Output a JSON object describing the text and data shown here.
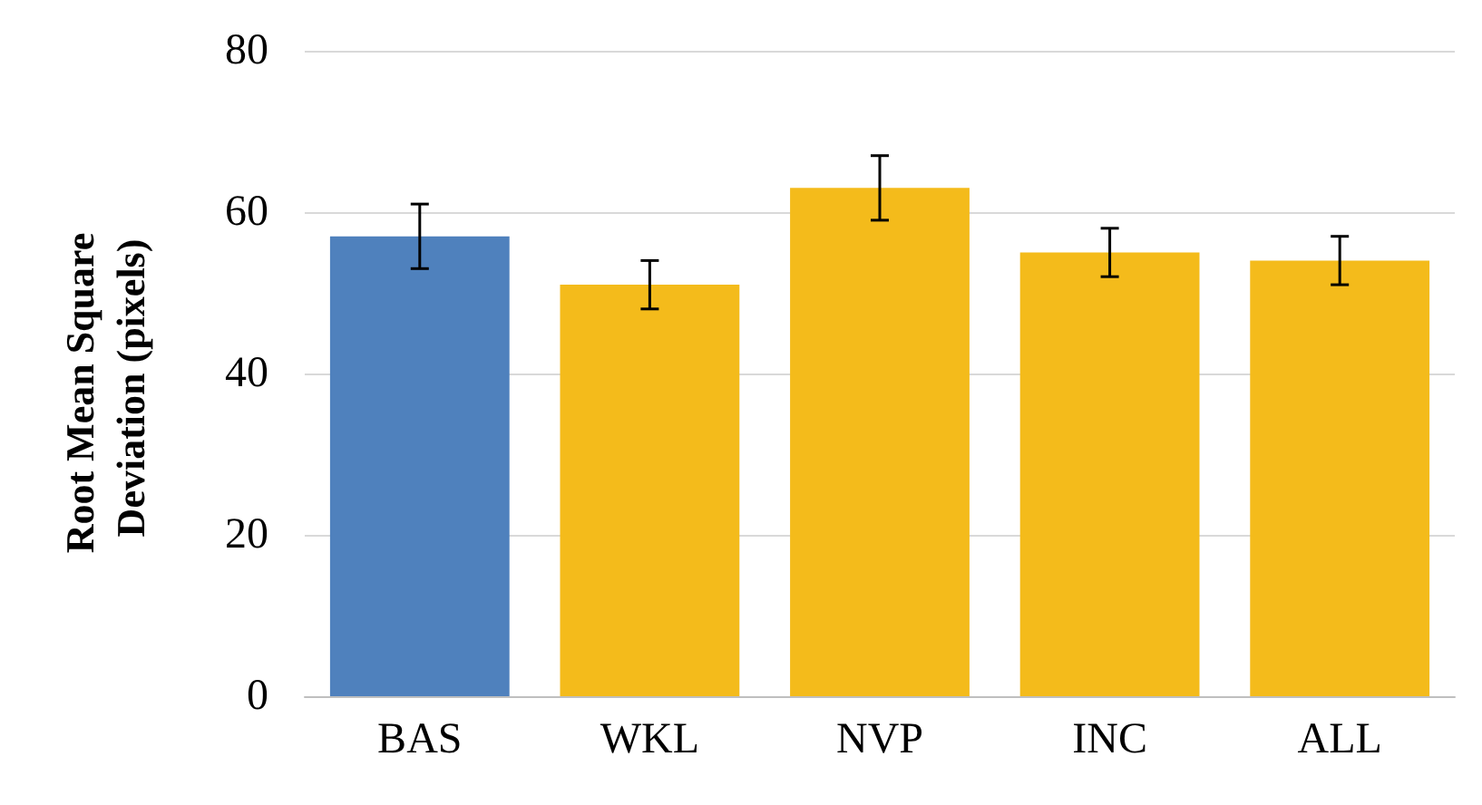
{
  "chart_data": {
    "type": "bar",
    "ylabel": "Root Mean Square Deviation (pixels)",
    "categories": [
      "BAS",
      "WKL",
      "NVP",
      "INC",
      "ALL"
    ],
    "values": [
      57,
      51,
      63,
      55,
      54
    ],
    "errors": [
      4,
      3,
      4,
      3,
      3
    ],
    "colors": [
      "#4f81bd",
      "#f4bb1b",
      "#f4bb1b",
      "#f4bb1b",
      "#f4bb1b"
    ],
    "ylim": [
      0,
      80
    ],
    "yticks": [
      0,
      20,
      40,
      60,
      80
    ],
    "grid": "y"
  }
}
